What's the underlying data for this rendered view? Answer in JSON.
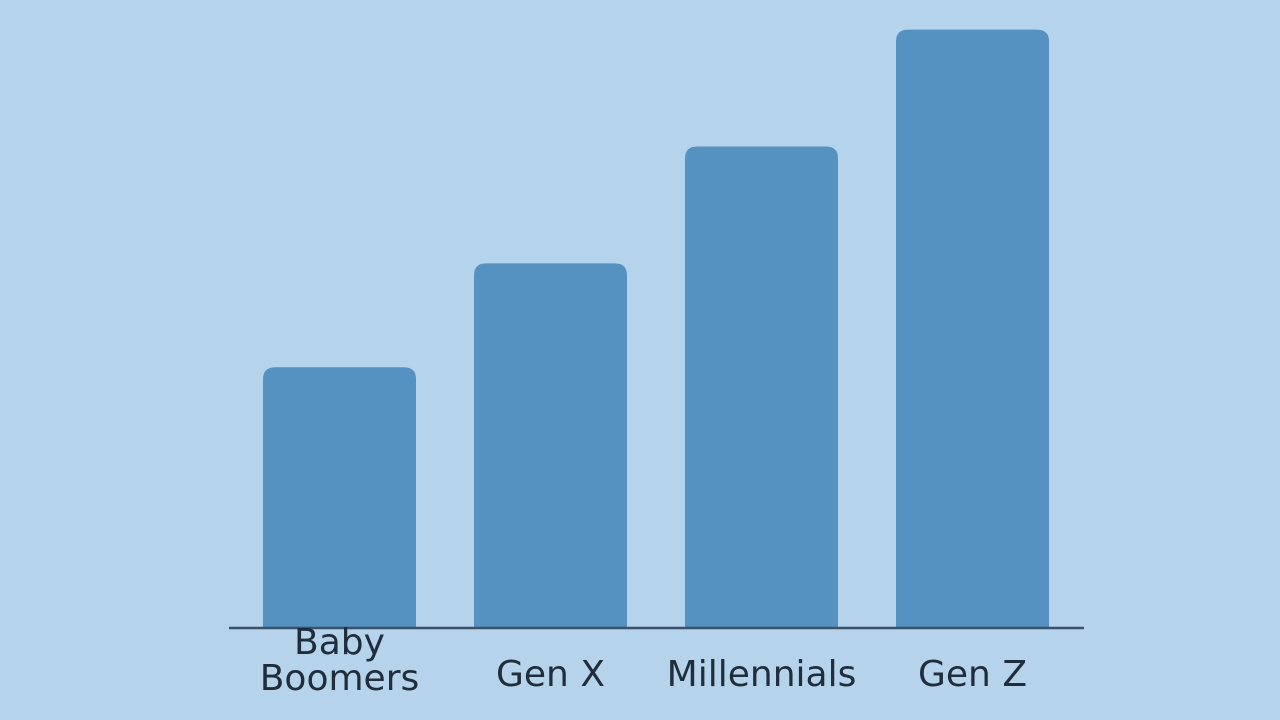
{
  "colors": {
    "background": "#b5d3ea",
    "bar": "#5592c2",
    "axis": "#3b5268",
    "label": "#1f2d3d"
  },
  "chart_data": {
    "type": "bar",
    "title": "",
    "xlabel": "",
    "ylabel": "",
    "categories": [
      "Baby Boomers",
      "Gen X",
      "Millennials",
      "Gen Z"
    ],
    "category_label_lines": [
      [
        "Baby",
        "Boomers"
      ],
      [
        "Gen X"
      ],
      [
        "Millennials"
      ],
      [
        "Gen Z"
      ]
    ],
    "values": [
      50,
      70,
      92.5,
      115
    ],
    "ylim": [
      0,
      118
    ],
    "grid": false,
    "legend": "none"
  }
}
